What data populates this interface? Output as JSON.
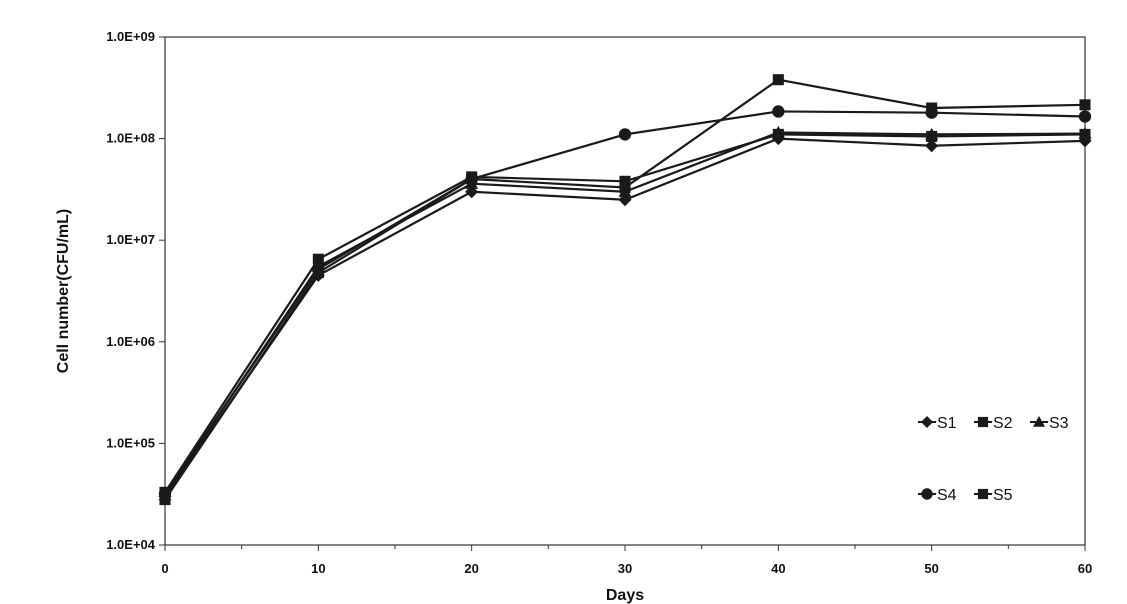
{
  "chart_data": {
    "type": "line",
    "title": "",
    "xlabel": "Days",
    "ylabel": "Cell number(CFU/mL)",
    "xlim": [
      0,
      60
    ],
    "ylim": [
      10000,
      1000000000
    ],
    "y_scale": "log",
    "x_ticks": [
      0,
      10,
      20,
      30,
      40,
      50,
      60
    ],
    "x_tick_labels": [
      "0",
      "10",
      "20",
      "30",
      "40",
      "50",
      "60"
    ],
    "y_ticks": [
      10000,
      100000,
      1000000,
      10000000,
      100000000,
      1000000000
    ],
    "y_tick_labels": [
      "1.0E+04",
      "1.0E+05",
      "1.0E+06",
      "1.0E+07",
      "1.0E+08",
      "1.0E+09"
    ],
    "grid": false,
    "legend_position": "bottom-right",
    "x": [
      0,
      10,
      20,
      30,
      40,
      50,
      60
    ],
    "series": [
      {
        "name": "S1",
        "marker": "diamond",
        "values": [
          30000,
          4500000,
          30000000,
          25000000,
          100000000,
          85000000,
          95000000
        ]
      },
      {
        "name": "S2",
        "marker": "square",
        "values": [
          33000,
          6500000,
          42000000,
          38000000,
          110000000,
          105000000,
          110000000
        ]
      },
      {
        "name": "S3",
        "marker": "triangle",
        "values": [
          31000,
          5500000,
          36000000,
          30000000,
          115000000,
          110000000,
          112000000
        ]
      },
      {
        "name": "S4",
        "marker": "circle",
        "values": [
          32000,
          5200000,
          40000000,
          110000000,
          185000000,
          180000000,
          165000000
        ]
      },
      {
        "name": "S5",
        "marker": "square",
        "values": [
          28000,
          4800000,
          40000000,
          33000000,
          380000000,
          200000000,
          215000000
        ]
      }
    ],
    "colors": {
      "line": "#1a1a1a",
      "marker": "#1a1a1a",
      "frame": "#333333",
      "background": "#ffffff"
    }
  }
}
